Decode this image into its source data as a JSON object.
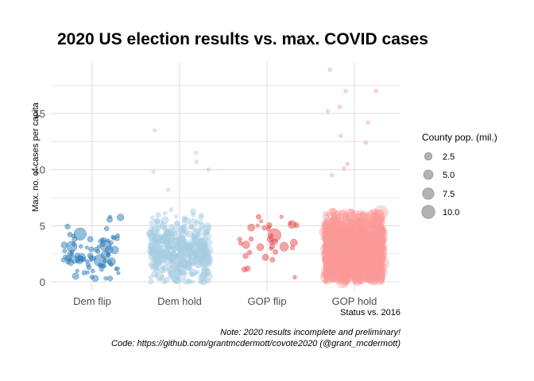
{
  "chart_data": {
    "type": "scatter",
    "title": "2020 US election results vs. max. COVID cases",
    "xlabel": "Status vs. 2016",
    "ylabel": "Max. no. of cases per capita",
    "categories": [
      "Dem flip",
      "Dem hold",
      "GOP flip",
      "GOP hold"
    ],
    "ylim": [
      -0.8,
      20
    ],
    "y_ticks": [
      0,
      5,
      10,
      15
    ],
    "y_ticks_labels": [
      "0",
      "5",
      "10",
      "15"
    ],
    "y_minor_ticks": [
      2.5,
      7.5,
      12.5,
      17.5
    ],
    "grid": true,
    "jitter": "horizontal",
    "series": [
      {
        "name": "Dem flip",
        "color": "#2b7bba",
        "approx_count": 80,
        "y_range": [
          0.3,
          5.8
        ],
        "y_center": 2.3,
        "outliers_y": [
          5.8
        ]
      },
      {
        "name": "Dem hold",
        "color": "#a6cde3",
        "approx_count": 450,
        "y_range": [
          0,
          13.5
        ],
        "y_center": 2.8,
        "outliers_y": [
          13.5,
          11.5,
          10.7,
          10.0,
          9.8,
          8.2
        ]
      },
      {
        "name": "GOP flip",
        "color": "#e8474c",
        "approx_count": 30,
        "y_range": [
          0.4,
          5.8
        ],
        "y_center": 3.5,
        "outliers_y": [
          5.8,
          5.4,
          5.2,
          5.0,
          4.9
        ]
      },
      {
        "name": "GOP hold",
        "color": "#fb9a99",
        "approx_count": 2400,
        "y_range": [
          0,
          18.9
        ],
        "y_center": 2.8,
        "outliers_y": [
          18.9,
          17.0,
          17.0,
          15.6,
          15.2,
          14.2,
          13.0,
          12.4,
          10.5,
          10.1,
          9.5
        ]
      }
    ],
    "size_legend": {
      "title": "County pop. (mil.)",
      "values": [
        2.5,
        5.0,
        7.5,
        10.0
      ],
      "labels": [
        "2.5",
        "5.0",
        "7.5",
        "10.0"
      ],
      "color": "#999999",
      "placement": "right"
    },
    "caption": [
      "Note: 2020 results incomplete and preliminary!",
      "Code: https://github.com/grantmcdermott/covote2020 (@grant_mcdermott)"
    ]
  }
}
